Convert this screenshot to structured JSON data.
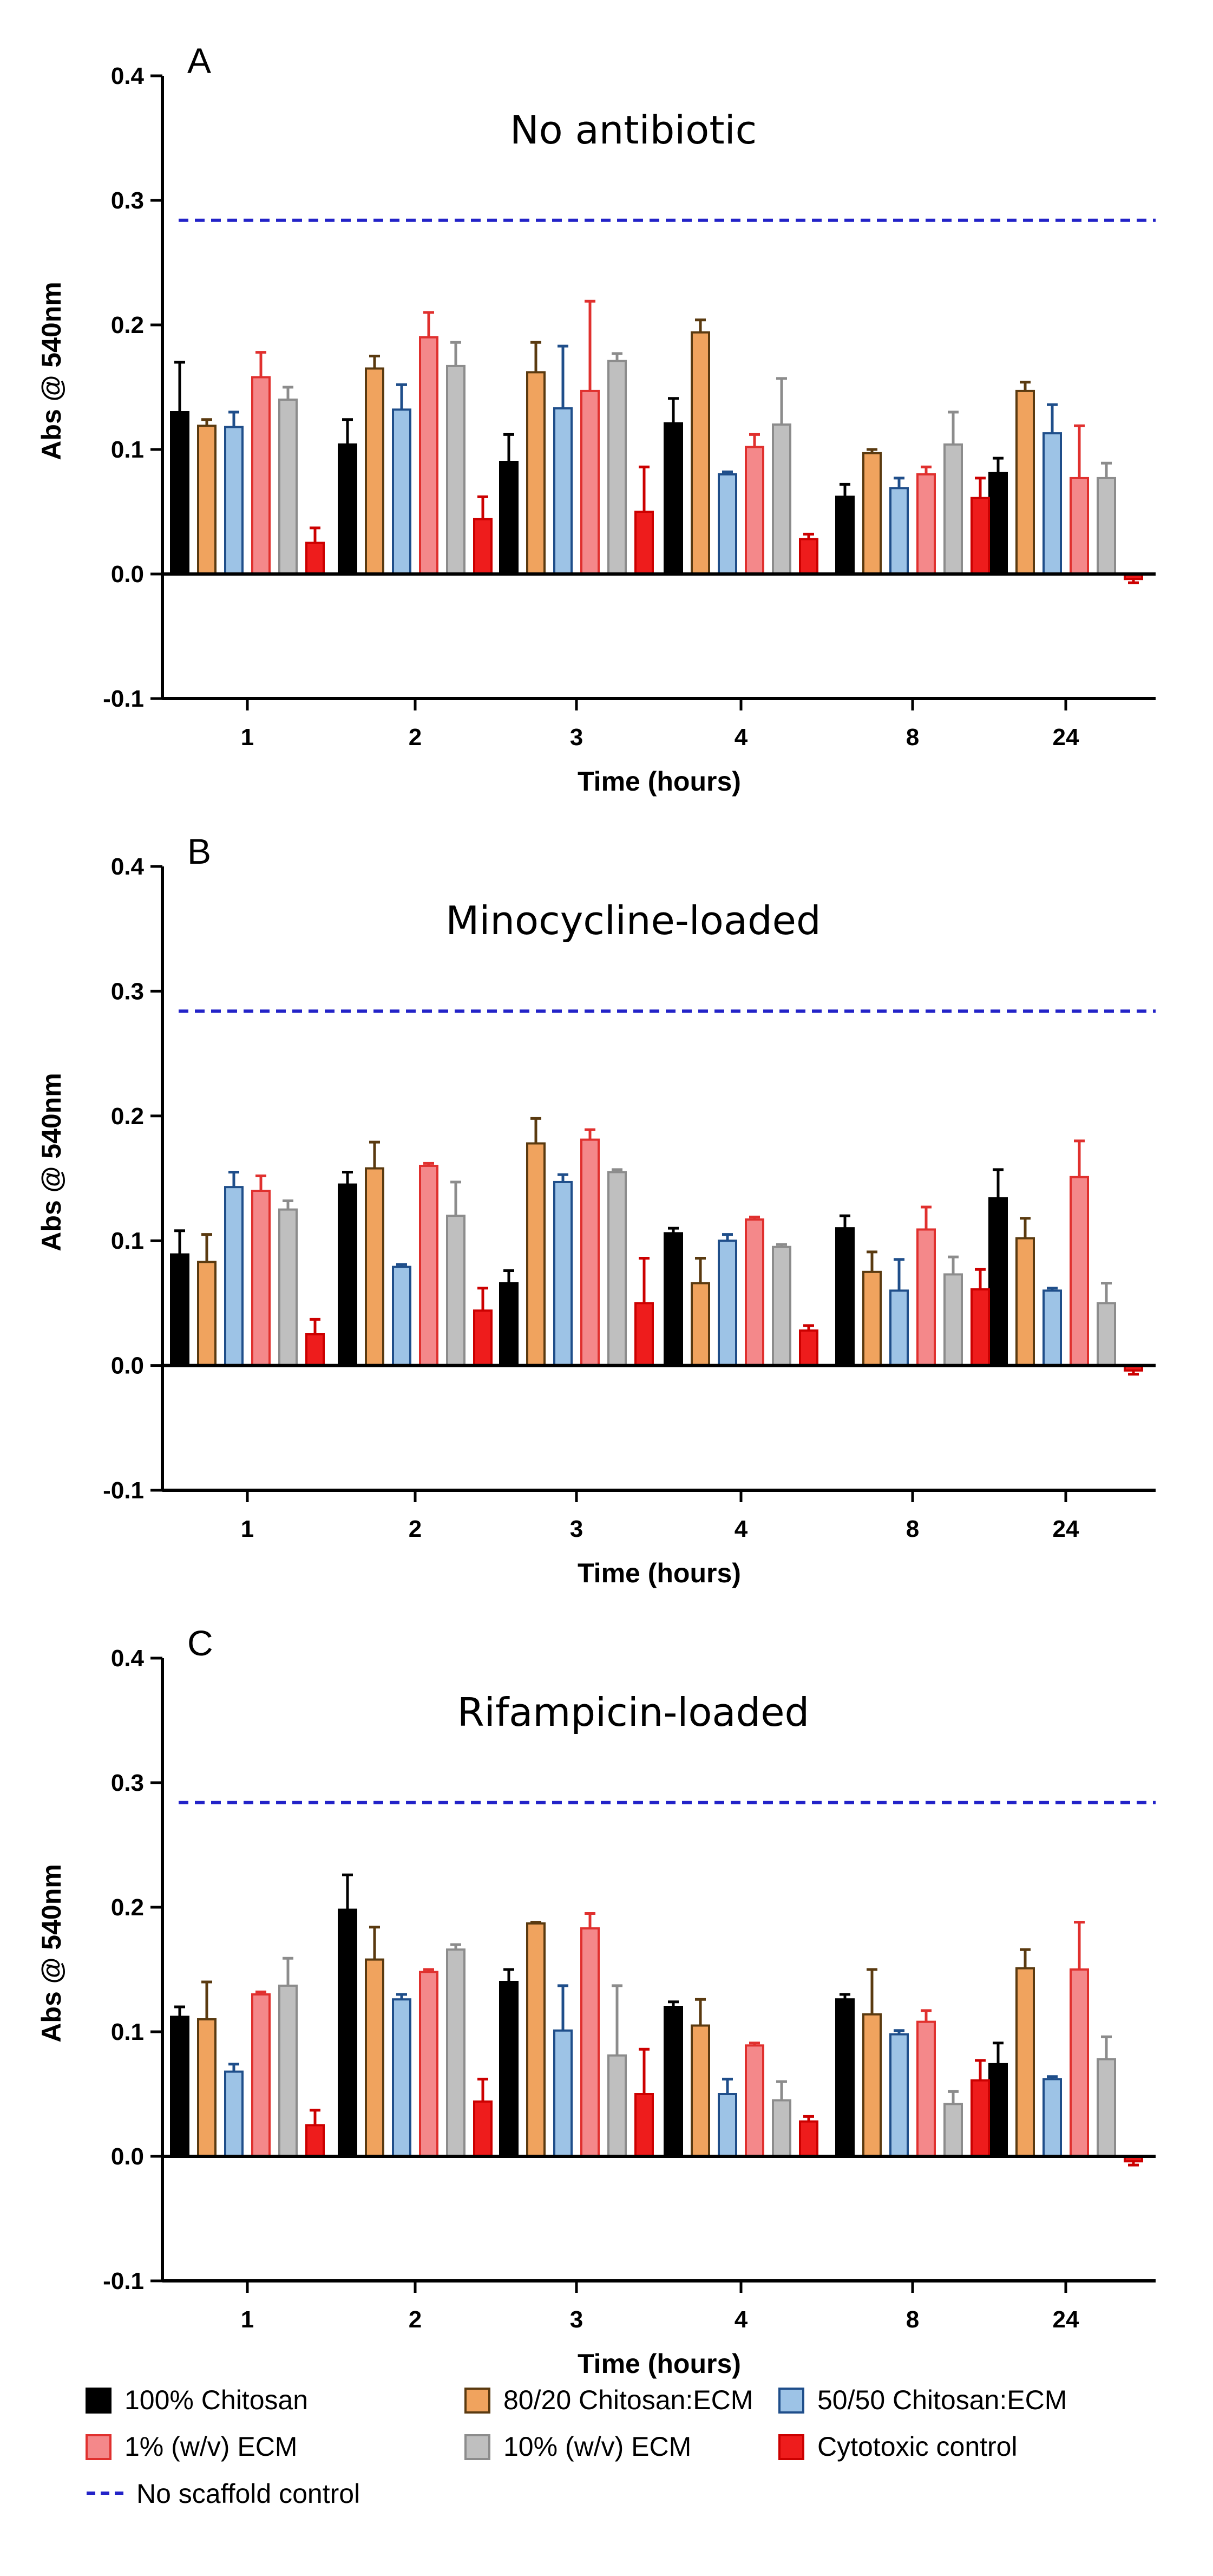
{
  "colors": {
    "chitosan100": "#000000",
    "chitosan8020": "#f0a35e",
    "chitosan5050": "#9dc3e6",
    "ecm1": "#f4888a",
    "ecm10": "#bfbfbf",
    "cytotoxic": "#ee1c1c",
    "no_scaffold": "#2323c8"
  },
  "legend": {
    "items": [
      {
        "label": "100% Chitosan",
        "key": "chitosan100"
      },
      {
        "label": "80/20 Chitosan:ECM",
        "key": "chitosan8020"
      },
      {
        "label": "50/50 Chitosan:ECM",
        "key": "chitosan5050"
      },
      {
        "label": "1% (w/v) ECM",
        "key": "ecm1"
      },
      {
        "label": "10% (w/v) ECM",
        "key": "ecm10"
      },
      {
        "label": "Cytotoxic control",
        "key": "cytotoxic"
      }
    ],
    "line_label": "No scaffold control"
  },
  "chart_data": [
    {
      "type": "bar",
      "letter": "A",
      "title": "No antibiotic",
      "xlabel": "Time (hours)",
      "ylabel": "Abs  @ 540nm",
      "ylim": [
        -0.1,
        0.4
      ],
      "yticks": [
        "-0.1",
        "0.0",
        "0.1",
        "0.2",
        "0.3",
        "0.4"
      ],
      "categories": [
        "1",
        "2",
        "3",
        "4",
        "8",
        "24"
      ],
      "reference_line": {
        "name": "No scaffold control",
        "value": 0.284
      },
      "series": [
        {
          "name": "100% Chitosan",
          "key": "chitosan100",
          "values": [
            0.13,
            0.104,
            0.09,
            0.121,
            0.062,
            0.081
          ],
          "errors": [
            0.04,
            0.02,
            0.022,
            0.02,
            0.01,
            0.012
          ]
        },
        {
          "name": "80/20 Chitosan:ECM",
          "key": "chitosan8020",
          "values": [
            0.119,
            0.165,
            0.162,
            0.194,
            0.097,
            0.147
          ],
          "errors": [
            0.005,
            0.01,
            0.024,
            0.01,
            0.003,
            0.007
          ]
        },
        {
          "name": "50/50 Chitosan:ECM",
          "key": "chitosan5050",
          "values": [
            0.118,
            0.132,
            0.133,
            0.08,
            0.069,
            0.113
          ],
          "errors": [
            0.012,
            0.02,
            0.05,
            0.002,
            0.008,
            0.023
          ]
        },
        {
          "name": "1% (w/v) ECM",
          "key": "ecm1",
          "values": [
            0.158,
            0.19,
            0.147,
            0.102,
            0.08,
            0.077
          ],
          "errors": [
            0.02,
            0.02,
            0.072,
            0.01,
            0.006,
            0.042
          ]
        },
        {
          "name": "10% (w/v) ECM",
          "key": "ecm10",
          "values": [
            0.14,
            0.167,
            0.171,
            0.12,
            0.104,
            0.077
          ],
          "errors": [
            0.01,
            0.019,
            0.006,
            0.037,
            0.026,
            0.012
          ]
        },
        {
          "name": "Cytotoxic control",
          "key": "cytotoxic",
          "values": [
            0.025,
            0.044,
            0.05,
            0.028,
            0.061,
            -0.004
          ],
          "errors": [
            0.012,
            0.018,
            0.036,
            0.004,
            0.016,
            0.003
          ]
        }
      ]
    },
    {
      "type": "bar",
      "letter": "B",
      "title": "Minocycline-loaded",
      "xlabel": "Time (hours)",
      "ylabel": "Abs  @ 540nm",
      "ylim": [
        -0.1,
        0.4
      ],
      "yticks": [
        "-0.1",
        "0.0",
        "0.1",
        "0.2",
        "0.3",
        "0.4"
      ],
      "categories": [
        "1",
        "2",
        "3",
        "4",
        "8",
        "24"
      ],
      "reference_line": {
        "name": "No scaffold control",
        "value": 0.284
      },
      "series": [
        {
          "name": "100% Chitosan",
          "key": "chitosan100",
          "values": [
            0.089,
            0.145,
            0.066,
            0.106,
            0.11,
            0.134
          ],
          "errors": [
            0.019,
            0.01,
            0.01,
            0.004,
            0.01,
            0.023
          ]
        },
        {
          "name": "80/20 Chitosan:ECM",
          "key": "chitosan8020",
          "values": [
            0.083,
            0.158,
            0.178,
            0.066,
            0.075,
            0.102
          ],
          "errors": [
            0.022,
            0.021,
            0.02,
            0.02,
            0.016,
            0.016
          ]
        },
        {
          "name": "50/50 Chitosan:ECM",
          "key": "chitosan5050",
          "values": [
            0.143,
            0.079,
            0.147,
            0.1,
            0.06,
            0.06
          ],
          "errors": [
            0.012,
            0.002,
            0.006,
            0.005,
            0.025,
            0.002
          ]
        },
        {
          "name": "1% (w/v) ECM",
          "key": "ecm1",
          "values": [
            0.14,
            0.16,
            0.181,
            0.117,
            0.109,
            0.151
          ],
          "errors": [
            0.012,
            0.002,
            0.008,
            0.002,
            0.018,
            0.029
          ]
        },
        {
          "name": "10% (w/v) ECM",
          "key": "ecm10",
          "values": [
            0.125,
            0.12,
            0.155,
            0.095,
            0.073,
            0.05
          ],
          "errors": [
            0.007,
            0.027,
            0.002,
            0.002,
            0.014,
            0.016
          ]
        },
        {
          "name": "Cytotoxic control",
          "key": "cytotoxic",
          "values": [
            0.025,
            0.044,
            0.05,
            0.028,
            0.061,
            -0.004
          ],
          "errors": [
            0.012,
            0.018,
            0.036,
            0.004,
            0.016,
            0.003
          ]
        }
      ]
    },
    {
      "type": "bar",
      "letter": "C",
      "title": "Rifampicin-loaded",
      "xlabel": "Time (hours)",
      "ylabel": "Abs  @ 540nm",
      "ylim": [
        -0.1,
        0.4
      ],
      "yticks": [
        "-0.1",
        "0.0",
        "0.1",
        "0.2",
        "0.3",
        "0.4"
      ],
      "categories": [
        "1",
        "2",
        "3",
        "4",
        "8",
        "24"
      ],
      "reference_line": {
        "name": "No scaffold control",
        "value": 0.284
      },
      "series": [
        {
          "name": "100% Chitosan",
          "key": "chitosan100",
          "values": [
            0.112,
            0.198,
            0.14,
            0.12,
            0.126,
            0.074
          ],
          "errors": [
            0.008,
            0.028,
            0.01,
            0.004,
            0.004,
            0.017
          ]
        },
        {
          "name": "80/20 Chitosan:ECM",
          "key": "chitosan8020",
          "values": [
            0.11,
            0.158,
            0.187,
            0.105,
            0.114,
            0.151
          ],
          "errors": [
            0.03,
            0.026,
            0.001,
            0.021,
            0.036,
            0.015
          ]
        },
        {
          "name": "50/50 Chitosan:ECM",
          "key": "chitosan5050",
          "values": [
            0.068,
            0.126,
            0.101,
            0.05,
            0.098,
            0.062
          ],
          "errors": [
            0.006,
            0.004,
            0.036,
            0.012,
            0.003,
            0.002
          ]
        },
        {
          "name": "1% (w/v) ECM",
          "key": "ecm1",
          "values": [
            0.13,
            0.148,
            0.183,
            0.089,
            0.108,
            0.15
          ],
          "errors": [
            0.002,
            0.002,
            0.012,
            0.002,
            0.009,
            0.038
          ]
        },
        {
          "name": "10% (w/v) ECM",
          "key": "ecm10",
          "values": [
            0.137,
            0.166,
            0.081,
            0.045,
            0.042,
            0.078
          ],
          "errors": [
            0.022,
            0.004,
            0.056,
            0.015,
            0.01,
            0.018
          ]
        },
        {
          "name": "Cytotoxic control",
          "key": "cytotoxic",
          "values": [
            0.025,
            0.044,
            0.05,
            0.028,
            0.061,
            -0.004
          ],
          "errors": [
            0.012,
            0.018,
            0.036,
            0.004,
            0.016,
            0.003
          ]
        }
      ]
    }
  ]
}
